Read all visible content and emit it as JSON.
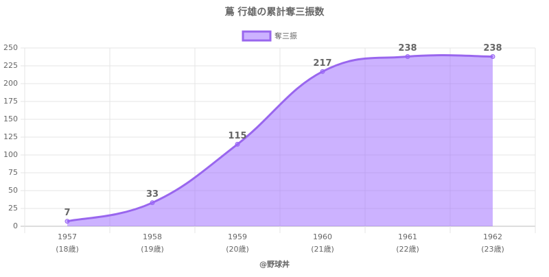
{
  "chart_data": {
    "type": "area",
    "title": "蔦 行雄の累計奪三振数",
    "categories": [
      [
        "1957",
        "(18歳)"
      ],
      [
        "1958",
        "(19歳)"
      ],
      [
        "1959",
        "(20歳)"
      ],
      [
        "1960",
        "(21歳)"
      ],
      [
        "1961",
        "(22歳)"
      ],
      [
        "1962",
        "(23歳)"
      ]
    ],
    "series": [
      {
        "name": "奪三振",
        "color": "#9966ee",
        "fill": "rgba(153,102,255,0.5)",
        "values": [
          7,
          33,
          115,
          217,
          238,
          238
        ]
      }
    ],
    "ylim": [
      0,
      250
    ],
    "yticks": [
      0,
      25,
      50,
      75,
      100,
      125,
      150,
      175,
      200,
      225,
      250
    ],
    "grid": true,
    "footer": "@野球丼"
  }
}
